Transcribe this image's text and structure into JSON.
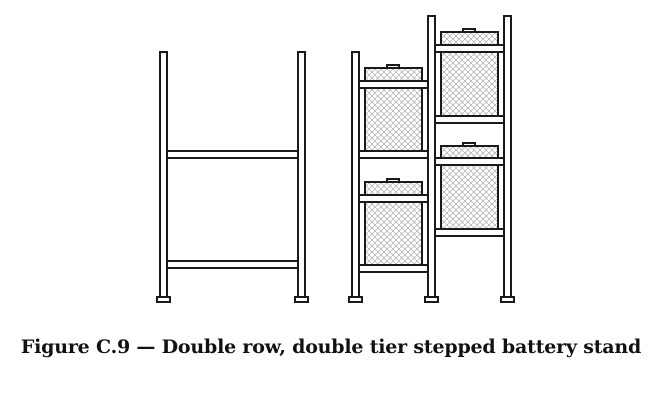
{
  "figure": {
    "caption": "Figure C.9 — Double row, double tier stepped battery stand"
  },
  "drawing": {
    "line_color": "#1a1a1a",
    "fill_color": "#ffffff",
    "battery_pattern": "dotted-crosshatch"
  }
}
